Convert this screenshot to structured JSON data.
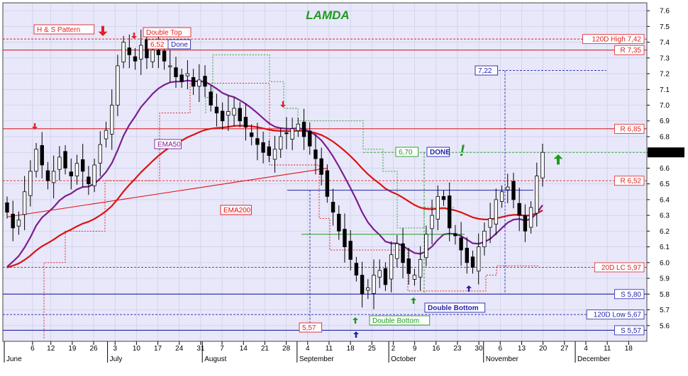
{
  "chart_data": {
    "type": "candlestick",
    "title": "LAMDA",
    "ylim": [
      5.5,
      7.65
    ],
    "y_ticks": [
      "5.6",
      "5.7",
      "5.8",
      "5.9",
      "6.0",
      "6.1",
      "6.2",
      "6.3",
      "6.4",
      "6.5",
      "6.6",
      "6.7",
      "6.8",
      "6.9",
      "7.0",
      "7.1",
      "7.2",
      "7.3",
      "7.4",
      "7.5",
      "7.6"
    ],
    "x_ticks": [
      {
        "label": "6",
        "day": 6
      },
      {
        "label": "12",
        "day": 12
      },
      {
        "label": "19",
        "day": 19
      },
      {
        "label": "26",
        "day": 26
      },
      {
        "label": "3",
        "day": 33
      },
      {
        "label": "10",
        "day": 40
      },
      {
        "label": "17",
        "day": 47
      },
      {
        "label": "24",
        "day": 54
      },
      {
        "label": "31",
        "day": 61
      },
      {
        "label": "7",
        "day": 68
      },
      {
        "label": "14",
        "day": 75
      },
      {
        "label": "21",
        "day": 82
      },
      {
        "label": "28",
        "day": 89
      },
      {
        "label": "4",
        "day": 96
      },
      {
        "label": "11",
        "day": 103
      },
      {
        "label": "18",
        "day": 110
      },
      {
        "label": "25",
        "day": 117
      },
      {
        "label": "2",
        "day": 124
      },
      {
        "label": "9",
        "day": 131
      },
      {
        "label": "16",
        "day": 138
      },
      {
        "label": "23",
        "day": 145
      },
      {
        "label": "30",
        "day": 152
      },
      {
        "label": "6",
        "day": 159
      },
      {
        "label": "13",
        "day": 166
      },
      {
        "label": "20",
        "day": 173
      },
      {
        "label": "27",
        "day": 180
      },
      {
        "label": "4",
        "day": 187
      },
      {
        "label": "11",
        "day": 194
      },
      {
        "label": "18",
        "day": 201
      }
    ],
    "months": [
      {
        "label": "June",
        "day": 0
      },
      {
        "label": "July",
        "day": 31
      },
      {
        "label": "August",
        "day": 62
      },
      {
        "label": "September",
        "day": 93
      },
      {
        "label": "October",
        "day": 123
      },
      {
        "label": "November",
        "day": 154
      },
      {
        "label": "December",
        "day": 184
      }
    ],
    "closes": [
      6.32,
      6.22,
      6.27,
      6.45,
      6.58,
      6.72,
      6.62,
      6.52,
      6.58,
      6.67,
      6.6,
      6.55,
      6.63,
      6.58,
      6.5,
      6.62,
      6.75,
      6.84,
      7.0,
      7.25,
      7.4,
      7.32,
      7.28,
      7.38,
      7.3,
      7.35,
      7.32,
      7.28,
      7.25,
      7.18,
      7.15,
      7.2,
      7.12,
      7.16,
      7.12,
      7.0,
      6.95,
      6.9,
      6.96,
      6.98,
      6.9,
      6.86,
      6.8,
      6.75,
      6.7,
      6.68,
      6.72,
      6.8,
      6.82,
      6.85,
      6.88,
      6.8,
      6.74,
      6.66,
      6.56,
      6.42,
      6.32,
      6.2,
      6.1,
      6.02,
      5.92,
      5.8,
      5.84,
      5.92,
      5.95,
      5.86,
      6.05,
      6.12,
      6.0,
      5.93,
      5.92,
      6.02,
      6.18,
      6.3,
      6.42,
      6.4,
      6.22,
      6.17,
      6.08,
      6.0,
      5.97,
      6.1,
      6.2,
      6.28,
      6.4,
      6.45,
      6.48,
      6.4,
      6.3,
      6.2,
      6.35,
      6.55,
      6.7
    ],
    "h_lines": [
      {
        "label": "120D High 7,42",
        "value": 7.42,
        "color": "#dd2222",
        "dash": true
      },
      {
        "label": "R 7,35",
        "value": 7.35,
        "color": "#dd2222",
        "dash": false
      },
      {
        "label": "R 6,85",
        "value": 6.85,
        "color": "#dd2222",
        "dash": false
      },
      {
        "label": "R 6,52",
        "value": 6.52,
        "color": "#dd2222",
        "dash": true
      },
      {
        "label": "20D LC 5,97",
        "value": 5.97,
        "color": "#dd2222",
        "dash": true
      },
      {
        "label": "S 5,80",
        "value": 5.8,
        "color": "#2222aa",
        "dash": false
      },
      {
        "label": "120D Low 5,67",
        "value": 5.67,
        "color": "#2222aa",
        "dash": true
      },
      {
        "label": "S 5,57",
        "value": 5.57,
        "color": "#2222aa",
        "dash": false
      }
    ],
    "last_price": {
      "label": "6.70000",
      "value": 6.7
    },
    "annotations": {
      "hs_pattern": "H & S Pattern",
      "double_top": "Double Top",
      "box_652": "6,52",
      "done1": "Done",
      "ema50": "EMA50",
      "ema200": "EMA200",
      "box_722": "7,22",
      "box_670": "6,70",
      "done2": "DONE",
      "exclaim": "!",
      "box_557": "5,57",
      "double_bottom_green": "Double Bottom",
      "double_bottom_blue": "Double Bottom"
    },
    "colors": {
      "background": "#e8e8fa",
      "resistance": "#dd2222",
      "support": "#2222aa",
      "ema50": "#7a1f8f",
      "ema200": "#dd1111",
      "signal_green": "#1e9a1e",
      "title": "#1e9a1e"
    }
  }
}
